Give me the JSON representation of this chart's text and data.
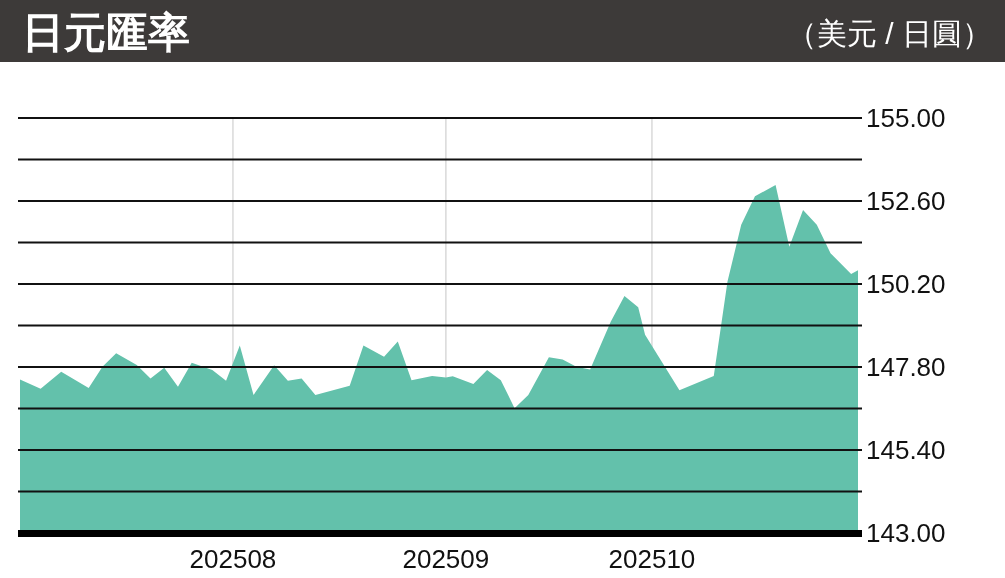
{
  "chart_data": {
    "type": "area",
    "title": "日元匯率",
    "subtitle": "（美元 / 日圓）",
    "color": "#63c1ab",
    "grid": true,
    "x": [
      "2025-07-01",
      "2025-07-04",
      "2025-07-07",
      "2025-07-11",
      "2025-07-13",
      "2025-07-15",
      "2025-07-18",
      "2025-07-20",
      "2025-07-22",
      "2025-07-24",
      "2025-07-26",
      "2025-07-29",
      "2025-07-31",
      "2025-08-02",
      "2025-08-04",
      "2025-08-07",
      "2025-08-09",
      "2025-08-11",
      "2025-08-13",
      "2025-08-18",
      "2025-08-20",
      "2025-08-23",
      "2025-08-25",
      "2025-08-27",
      "2025-08-30",
      "2025-09-01",
      "2025-09-02",
      "2025-09-05",
      "2025-09-07",
      "2025-09-09",
      "2025-09-11",
      "2025-09-13",
      "2025-09-16",
      "2025-09-18",
      "2025-09-20",
      "2025-09-22",
      "2025-09-25",
      "2025-09-27",
      "2025-09-29",
      "2025-09-30",
      "2025-10-05",
      "2025-10-10",
      "2025-10-12",
      "2025-10-14",
      "2025-10-16",
      "2025-10-19",
      "2025-10-21",
      "2025-10-23",
      "2025-10-25",
      "2025-10-27",
      "2025-10-30",
      "2025-10-31"
    ],
    "values": [
      147.44,
      147.17,
      147.66,
      147.19,
      147.81,
      148.2,
      147.86,
      147.47,
      147.78,
      147.23,
      147.92,
      147.71,
      147.4,
      148.42,
      146.99,
      147.85,
      147.4,
      147.47,
      146.99,
      147.26,
      148.42,
      148.1,
      148.54,
      147.42,
      147.54,
      147.5,
      147.53,
      147.31,
      147.71,
      147.42,
      146.61,
      146.99,
      148.08,
      148.02,
      147.81,
      147.73,
      149.11,
      149.85,
      149.53,
      148.73,
      147.13,
      147.54,
      150.27,
      151.91,
      152.74,
      153.06,
      151.28,
      152.34,
      151.91,
      151.09,
      150.49,
      150.6
    ],
    "xlim": [
      "2025-07-01",
      "2025-10-31"
    ],
    "xticks": [
      {
        "value": "2025-08-01",
        "label": "202508"
      },
      {
        "value": "2025-09-01",
        "label": "202509"
      },
      {
        "value": "2025-10-01",
        "label": "202510"
      }
    ],
    "ylim": [
      143,
      155
    ],
    "yticks": [
      {
        "value": 143,
        "label": "143.00"
      },
      {
        "value": 144.2,
        "label": null
      },
      {
        "value": 145.4,
        "label": "145.40"
      },
      {
        "value": 146.6,
        "label": null
      },
      {
        "value": 147.8,
        "label": "147.80"
      },
      {
        "value": 149,
        "label": null
      },
      {
        "value": 150.2,
        "label": "150.20"
      },
      {
        "value": 151.4,
        "label": null
      },
      {
        "value": 152.6,
        "label": "152.60"
      },
      {
        "value": 153.8,
        "label": null
      },
      {
        "value": 155,
        "label": "155.00"
      }
    ]
  }
}
